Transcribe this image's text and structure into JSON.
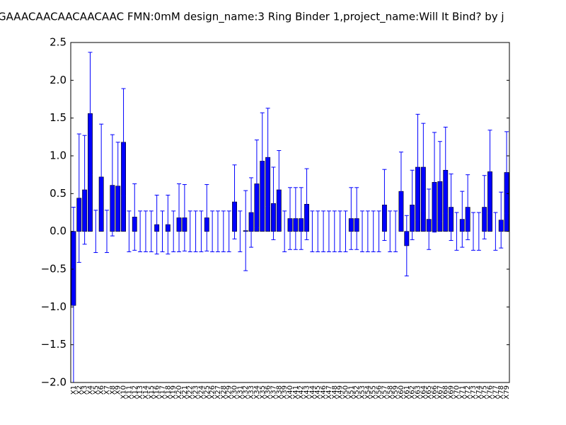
{
  "chart_data": {
    "type": "bar",
    "title": "GAAACAACAACAACAAC  FMN:0mM  design_name:3 Ring Binder 1,project_name:Will It Bind? by j",
    "categories": [
      "X1",
      "X2",
      "X3",
      "X4",
      "X5",
      "X6",
      "X7",
      "X8",
      "X9",
      "X10",
      "X11",
      "X12",
      "X13",
      "X14",
      "X15",
      "X16",
      "X17",
      "X18",
      "X19",
      "X20",
      "X21",
      "X22",
      "X23",
      "X24",
      "X25",
      "X26",
      "X27",
      "X28",
      "X29",
      "X30",
      "X31",
      "X32",
      "X33",
      "X34",
      "X35",
      "X36",
      "X37",
      "X38",
      "X39",
      "X40",
      "X41",
      "X42",
      "X43",
      "X44",
      "X45",
      "X46",
      "X47",
      "X48",
      "X49",
      "X50",
      "X51",
      "X52",
      "X53",
      "X54",
      "X55",
      "X56",
      "X57",
      "X58",
      "X59",
      "X60",
      "X61",
      "X62",
      "X63",
      "X64",
      "X65",
      "X66",
      "X67",
      "X68",
      "X69",
      "X70",
      "X71",
      "X72",
      "X73",
      "X74",
      "X75",
      "X76",
      "X77",
      "X78",
      "X79"
    ],
    "values": [
      -0.98,
      0.44,
      0.55,
      1.56,
      0,
      0.72,
      0,
      0.61,
      0.6,
      1.18,
      0,
      0.19,
      0,
      0,
      0,
      0.09,
      0,
      0.09,
      0,
      0.18,
      0.18,
      0,
      0,
      0,
      0.18,
      0,
      0,
      0,
      0,
      0.39,
      0,
      0.01,
      0.25,
      0.63,
      0.93,
      0.98,
      0.37,
      0.55,
      0,
      0.17,
      0.17,
      0.17,
      0.36,
      0,
      0,
      0,
      0,
      0,
      0,
      0,
      0.17,
      0.17,
      0,
      0,
      0,
      0,
      0.35,
      0,
      0,
      0.53,
      -0.19,
      0.35,
      0.85,
      0.85,
      0.16,
      0.65,
      0.66,
      0.81,
      0.32,
      0,
      0.16,
      0.32,
      0,
      0,
      0.32,
      0.79,
      0,
      0.15,
      0.78
    ],
    "errors": [
      1.3,
      0.85,
      0.72,
      0.81,
      0.28,
      0.7,
      0.28,
      0.67,
      0.58,
      0.71,
      0.27,
      0.44,
      0.27,
      0.27,
      0.27,
      0.39,
      0.27,
      0.39,
      0.27,
      0.45,
      0.44,
      0.27,
      0.27,
      0.27,
      0.44,
      0.27,
      0.27,
      0.27,
      0.27,
      0.49,
      0.27,
      0.53,
      0.46,
      0.58,
      0.64,
      0.65,
      0.48,
      0.52,
      0.27,
      0.41,
      0.41,
      0.41,
      0.47,
      0.27,
      0.27,
      0.27,
      0.27,
      0.27,
      0.27,
      0.27,
      0.41,
      0.41,
      0.27,
      0.27,
      0.27,
      0.27,
      0.47,
      0.27,
      0.27,
      0.52,
      0.4,
      0.46,
      0.7,
      0.58,
      0.4,
      0.66,
      0.53,
      0.57,
      0.44,
      0.25,
      0.37,
      0.43,
      0.25,
      0.25,
      0.42,
      0.55,
      0.25,
      0.37,
      0.54
    ],
    "color": "#0000ff",
    "error_color": "#0000ff",
    "ylim": [
      -2.0,
      2.5
    ],
    "yticks": [
      {
        "value": -2.0,
        "label": "−2.0"
      },
      {
        "value": -1.5,
        "label": "−1.5"
      },
      {
        "value": -1.0,
        "label": "−1.0"
      },
      {
        "value": -0.5,
        "label": "−0.5"
      },
      {
        "value": 0.0,
        "label": "0.0"
      },
      {
        "value": 0.5,
        "label": "0.5"
      },
      {
        "value": 1.0,
        "label": "1.0"
      },
      {
        "value": 1.5,
        "label": "1.5"
      },
      {
        "value": 2.0,
        "label": "2.0"
      },
      {
        "value": 2.5,
        "label": "2.5"
      }
    ],
    "grid": false
  }
}
